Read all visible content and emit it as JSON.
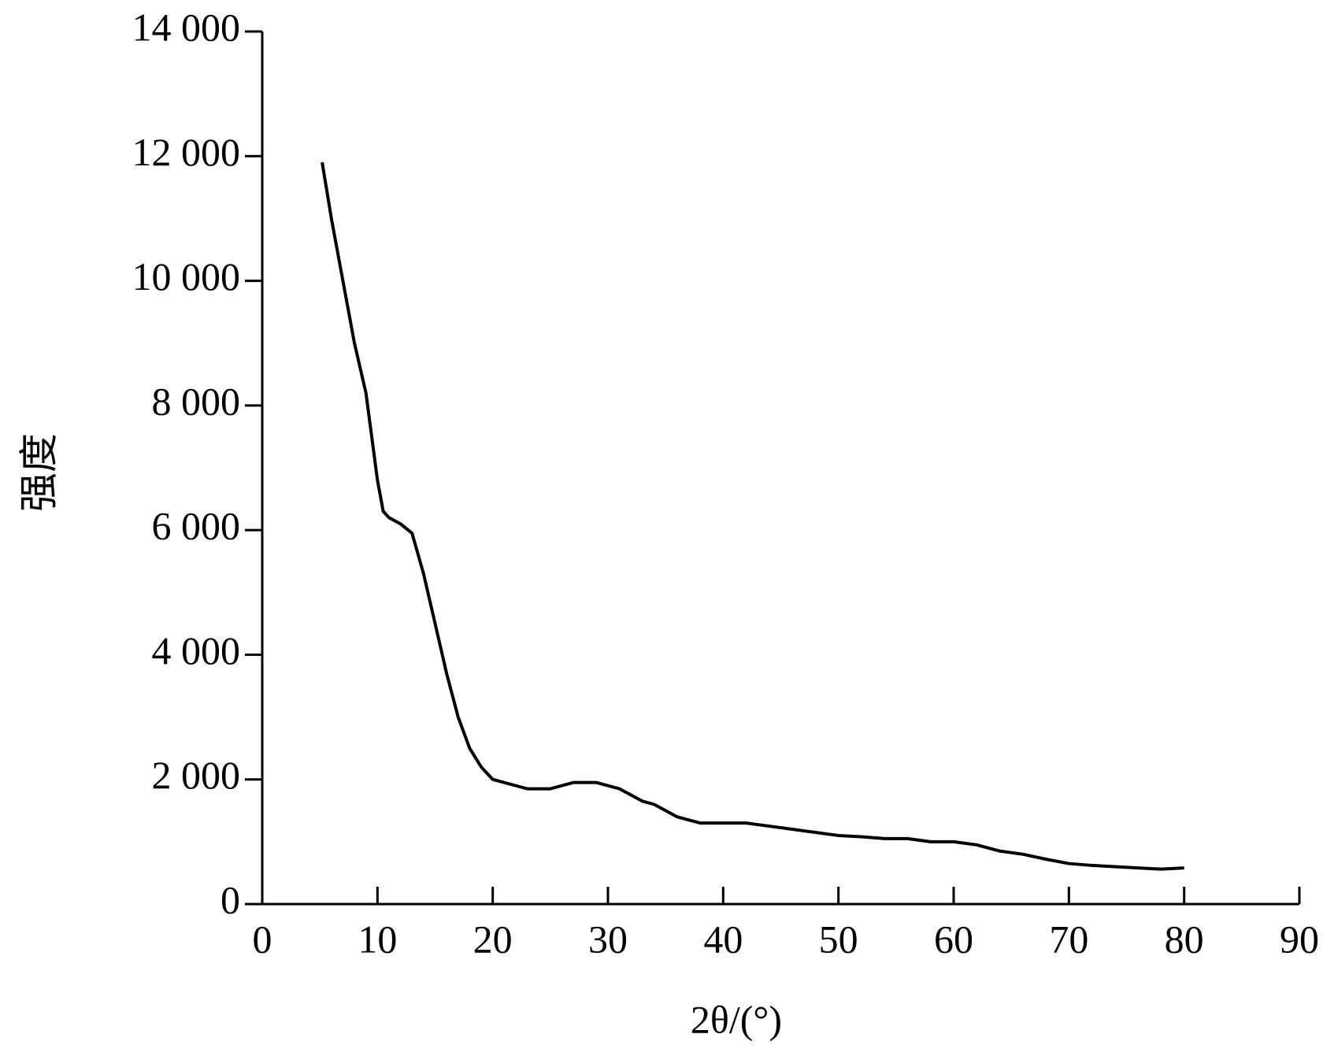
{
  "chart_data": {
    "type": "line",
    "x_label": "2θ/(°)",
    "y_label": "强度",
    "x": [
      5.2,
      6,
      7,
      8,
      9,
      10,
      10.5,
      11,
      12,
      13,
      14,
      15,
      16,
      17,
      18,
      19,
      20,
      21,
      22,
      23,
      24,
      25,
      26,
      27,
      28,
      29,
      30,
      31,
      32,
      33,
      34,
      35,
      36,
      37,
      38,
      39,
      40,
      42,
      44,
      46,
      48,
      50,
      52,
      54,
      56,
      58,
      60,
      62,
      64,
      66,
      68,
      70,
      72,
      74,
      76,
      78,
      80
    ],
    "series": [
      {
        "color": "#000000",
        "values": [
          11900,
          11000,
          10000,
          9000,
          8200,
          6800,
          6300,
          6200,
          6100,
          5950,
          5300,
          4500,
          3700,
          3000,
          2500,
          2200,
          2000,
          1950,
          1900,
          1850,
          1850,
          1850,
          1900,
          1950,
          1950,
          1950,
          1900,
          1850,
          1750,
          1650,
          1600,
          1500,
          1400,
          1350,
          1300,
          1300,
          1300,
          1300,
          1250,
          1200,
          1150,
          1100,
          1080,
          1050,
          1050,
          1000,
          1000,
          950,
          850,
          800,
          720,
          650,
          620,
          600,
          580,
          560,
          580
        ]
      }
    ],
    "xlim": [
      0,
      90
    ],
    "xticks": [
      0,
      10,
      20,
      30,
      40,
      50,
      60,
      70,
      80,
      90
    ],
    "ylim": [
      0,
      14000
    ],
    "yticks": [
      0,
      {
        "value": 2000,
        "label": "2 000"
      },
      {
        "value": 4000,
        "label": "4 000"
      },
      {
        "value": 6000,
        "label": "6 000"
      },
      {
        "value": 8000,
        "label": "8 000"
      },
      {
        "value": 10000,
        "label": "10 000"
      },
      {
        "value": 12000,
        "label": "12 000"
      },
      {
        "value": 14000,
        "label": "14 000"
      }
    ],
    "grid": false
  }
}
